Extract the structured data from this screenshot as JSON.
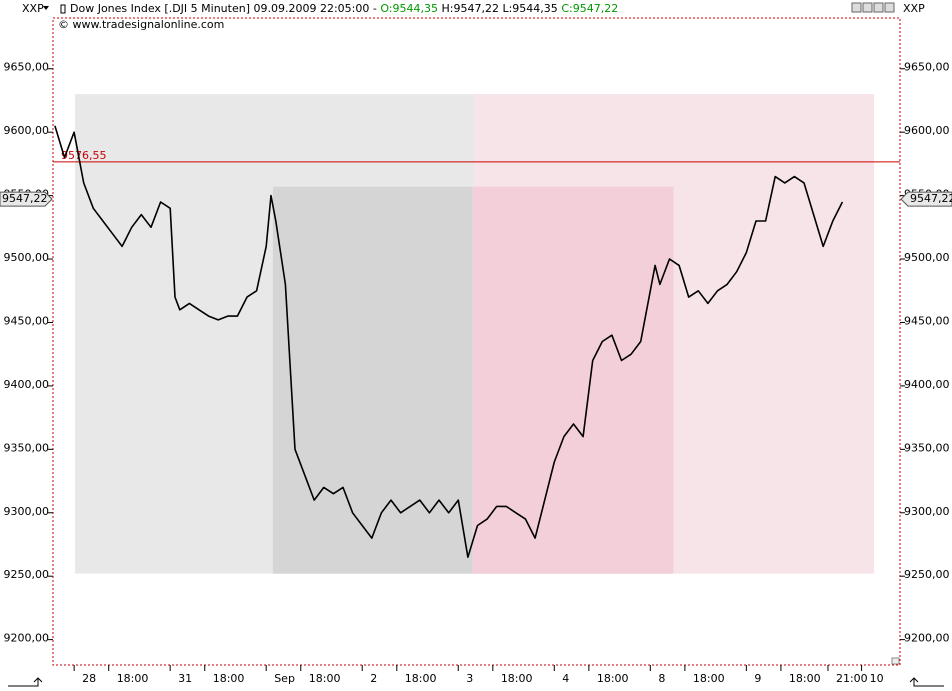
{
  "header": {
    "symbol": "XXP",
    "symbol_right": "XXP",
    "description": "Dow Jones Index [.DJI  5 Minuten] 09.09.2009 22:05:00 -",
    "open": "O:9544,35",
    "high_low": "H:9547,22 L:9544,35",
    "close": "C:9547,22",
    "source": "© www.tradesignalonline.com"
  },
  "chart_data": {
    "type": "line",
    "x": [
      -0.2,
      -0.1,
      0,
      0.1,
      0.2,
      0.3,
      0.4,
      0.5,
      0.6,
      0.7,
      0.8,
      0.9,
      1.0,
      1.05,
      1.1,
      1.2,
      1.3,
      1.4,
      1.5,
      1.6,
      1.7,
      1.8,
      1.9,
      2.0,
      2.05,
      2.1,
      2.2,
      2.3,
      2.4,
      2.5,
      2.6,
      2.7,
      2.8,
      2.9,
      3.0,
      3.1,
      3.2,
      3.3,
      3.4,
      3.5,
      3.6,
      3.7,
      3.8,
      3.9,
      4.0,
      4.1,
      4.2,
      4.3,
      4.4,
      4.5,
      4.6,
      4.7,
      4.8,
      4.9,
      5.0,
      5.1,
      5.2,
      5.3,
      5.4,
      5.5,
      5.6,
      5.7,
      5.8,
      5.9,
      6.0,
      6.05,
      6.1,
      6.2,
      6.3,
      6.4,
      6.5,
      6.6,
      6.7,
      6.8,
      6.9,
      7.0,
      7.1,
      7.2,
      7.3,
      7.4,
      7.5,
      7.6,
      7.7,
      7.8,
      7.9,
      8.0
    ],
    "series": [
      {
        "color": "#000000",
        "values": [
          9605,
          9580,
          9600,
          9560,
          9540,
          9530,
          9520,
          9510,
          9525,
          9535,
          9525,
          9545,
          9540,
          9470,
          9460,
          9465,
          9460,
          9455,
          9452,
          9455,
          9455,
          9470,
          9475,
          9510,
          9550,
          9530,
          9480,
          9350,
          9330,
          9310,
          9320,
          9315,
          9320,
          9300,
          9290,
          9280,
          9300,
          9310,
          9300,
          9305,
          9310,
          9300,
          9310,
          9300,
          9310,
          9265,
          9290,
          9295,
          9305,
          9305,
          9300,
          9295,
          9280,
          9310,
          9340,
          9360,
          9370,
          9360,
          9420,
          9435,
          9440,
          9420,
          9425,
          9435,
          9475,
          9495,
          9480,
          9500,
          9495,
          9470,
          9475,
          9465,
          9475,
          9480,
          9490,
          9505,
          9530,
          9530,
          9565,
          9560,
          9565,
          9560,
          9535,
          9510,
          9530,
          9545
        ]
      }
    ],
    "xlim": [
      -0.22,
      8.6
    ],
    "xticks": [
      {
        "value": 0,
        "label": "28"
      },
      {
        "value": 0.36,
        "label": "18:00"
      },
      {
        "value": 1,
        "label": "31"
      },
      {
        "value": 1.36,
        "label": "18:00"
      },
      {
        "value": 2,
        "label": "Sep"
      },
      {
        "value": 2.36,
        "label": "18:00"
      },
      {
        "value": 3,
        "label": "2"
      },
      {
        "value": 3.36,
        "label": "18:00"
      },
      {
        "value": 4,
        "label": "3"
      },
      {
        "value": 4.36,
        "label": "18:00"
      },
      {
        "value": 5,
        "label": "4"
      },
      {
        "value": 5.36,
        "label": "18:00"
      },
      {
        "value": 6,
        "label": "8"
      },
      {
        "value": 6.36,
        "label": "18:00"
      },
      {
        "value": 7,
        "label": "9"
      },
      {
        "value": 7.36,
        "label": "18:00"
      },
      {
        "value": 7.85,
        "label": "21:00"
      },
      {
        "value": 8.2,
        "label": "10"
      }
    ],
    "ylim": [
      9180,
      9690
    ],
    "yticks": [
      {
        "value": 9200,
        "label": "9200,00"
      },
      {
        "value": 9250,
        "label": "9250,00"
      },
      {
        "value": 9300,
        "label": "9300,00"
      },
      {
        "value": 9350,
        "label": "9350,00"
      },
      {
        "value": 9400,
        "label": "9400,00"
      },
      {
        "value": 9450,
        "label": "9450,00"
      },
      {
        "value": 9500,
        "label": "9500,00"
      },
      {
        "value": 9550,
        "label": "9550,00"
      },
      {
        "value": 9600,
        "label": "9600,00"
      },
      {
        "value": 9650,
        "label": "9650,00"
      }
    ],
    "zones": [
      {
        "x": [
          0.01,
          4.17
        ],
        "y": [
          9252,
          9630
        ],
        "color": "#e8e8e8"
      },
      {
        "x": [
          4.17,
          8.33
        ],
        "y": [
          9252,
          9630
        ],
        "color": "#f7e4e8"
      },
      {
        "x": [
          2.07,
          4.15
        ],
        "y": [
          9252,
          9557
        ],
        "color": "#d5d5d5"
      },
      {
        "x": [
          4.15,
          6.24
        ],
        "y": [
          9252,
          9557
        ],
        "color": "#f3d0d9"
      }
    ],
    "hline": {
      "value": 9576.55,
      "label": "9576,55",
      "color": "#cc0000"
    },
    "last_price": {
      "value": 9547.22,
      "label": "9547,22"
    }
  }
}
